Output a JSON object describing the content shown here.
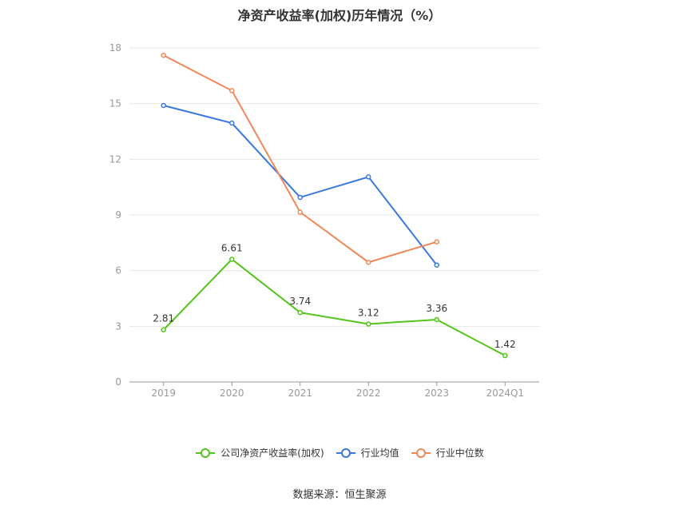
{
  "chart_data": {
    "type": "line",
    "title": "净资产收益率(加权)历年情况（%）",
    "categories": [
      "2019",
      "2020",
      "2021",
      "2022",
      "2023",
      "2024Q1"
    ],
    "ylim": [
      0,
      18
    ],
    "yticks": [
      0,
      3,
      6,
      9,
      12,
      15,
      18
    ],
    "grid": true,
    "legend_position": "bottom",
    "series": [
      {
        "name": "公司净资产收益率(加权)",
        "color": "#52c41a",
        "values": [
          2.81,
          6.61,
          3.74,
          3.12,
          3.36,
          1.42
        ],
        "show_labels": true
      },
      {
        "name": "行业均值",
        "color": "#3a78dc",
        "values": [
          14.9,
          13.95,
          9.95,
          11.05,
          6.3,
          null
        ],
        "show_labels": false
      },
      {
        "name": "行业中位数",
        "color": "#f0885a",
        "values": [
          17.6,
          15.7,
          9.15,
          6.45,
          7.55,
          null
        ],
        "show_labels": false
      }
    ],
    "data_labels": [
      "2.81",
      "6.61",
      "3.74",
      "3.12",
      "3.36",
      "1.42"
    ]
  },
  "source_text": "数据来源：恒生聚源"
}
